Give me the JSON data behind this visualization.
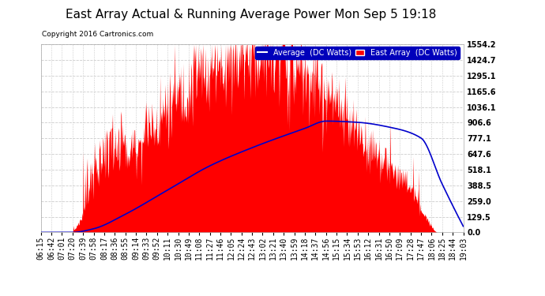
{
  "title": "East Array Actual & Running Average Power Mon Sep 5 19:18",
  "copyright": "Copyright 2016 Cartronics.com",
  "ylabel_right_values": [
    0.0,
    129.5,
    259.0,
    388.5,
    518.1,
    647.6,
    777.1,
    906.6,
    1036.1,
    1165.6,
    1295.1,
    1424.7,
    1554.2
  ],
  "ymax": 1554.2,
  "ymin": 0.0,
  "x_tick_labels": [
    "06:15",
    "06:42",
    "07:01",
    "07:20",
    "07:39",
    "07:58",
    "08:17",
    "08:36",
    "08:55",
    "09:14",
    "09:33",
    "09:52",
    "10:11",
    "10:30",
    "10:49",
    "11:08",
    "11:27",
    "11:46",
    "12:05",
    "12:24",
    "12:43",
    "13:02",
    "13:21",
    "13:40",
    "13:59",
    "14:18",
    "14:37",
    "14:56",
    "15:15",
    "15:34",
    "15:53",
    "16:12",
    "16:31",
    "16:50",
    "17:09",
    "17:28",
    "17:47",
    "18:06",
    "18:25",
    "18:44",
    "19:03"
  ],
  "background_color": "#ffffff",
  "plot_bg_color": "#ffffff",
  "grid_color": "#cccccc",
  "fill_color": "#ff0000",
  "line_color": "#0000cc",
  "title_fontsize": 11,
  "tick_fontsize": 7,
  "legend_labels": [
    "Average  (DC Watts)",
    "East Array  (DC Watts)"
  ],
  "legend_colors": [
    "#0000cc",
    "#ff0000"
  ]
}
